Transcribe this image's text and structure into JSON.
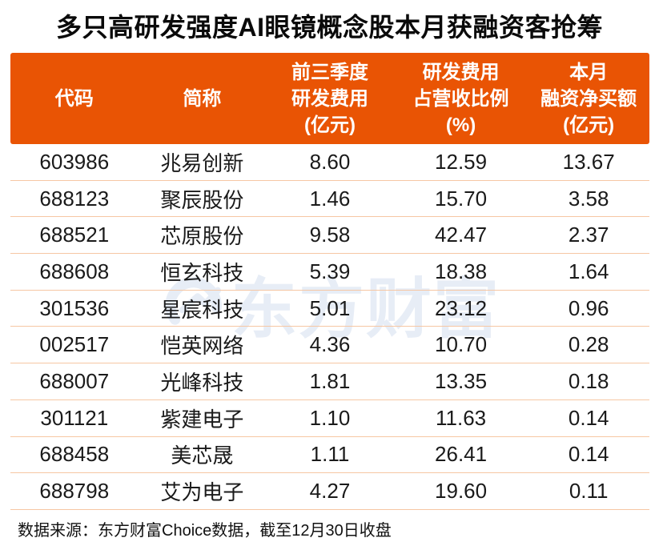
{
  "title": "多只高研发强度AI眼镜概念股本月获融资客抢筹",
  "colors": {
    "header_bg": "#E95404",
    "row_separator": "#F6C7A4",
    "title_text": "#0a0a0a",
    "header_text": "#ffffff",
    "cell_text": "#1a1a1a",
    "watermark": "#E7EDF6"
  },
  "watermark": {
    "text": "东方财富"
  },
  "footer": {
    "source_note": "数据来源：东方财富Choice数据，截至12月30日收盘"
  },
  "chart_data": {
    "type": "table",
    "title": "多只高研发强度AI眼镜概念股本月获融资客抢筹",
    "header_columns": [
      {
        "label": "代码",
        "lines": [
          "代码"
        ]
      },
      {
        "label": "简称",
        "lines": [
          "简称"
        ]
      },
      {
        "label": "前三季度研发费用(亿元)",
        "lines": [
          "前三季度",
          "研发费用",
          "(亿元)"
        ]
      },
      {
        "label": "研发费用占营收比例(%)",
        "lines": [
          "研发费用",
          "占营收比例",
          "(%)"
        ]
      },
      {
        "label": "本月融资净买额(亿元)",
        "lines": [
          "本月",
          "融资净买额",
          "(亿元)"
        ]
      }
    ],
    "rows": [
      [
        "603986",
        "兆易创新",
        "8.60",
        "12.59",
        "13.67"
      ],
      [
        "688123",
        "聚辰股份",
        "1.46",
        "15.70",
        "3.58"
      ],
      [
        "688521",
        "芯原股份",
        "9.58",
        "42.47",
        "2.37"
      ],
      [
        "688608",
        "恒玄科技",
        "5.39",
        "18.38",
        "1.64"
      ],
      [
        "301536",
        "星宸科技",
        "5.01",
        "23.12",
        "0.96"
      ],
      [
        "002517",
        "恺英网络",
        "4.36",
        "10.70",
        "0.28"
      ],
      [
        "688007",
        "光峰科技",
        "1.81",
        "13.35",
        "0.18"
      ],
      [
        "301121",
        "紫建电子",
        "1.10",
        "11.63",
        "0.14"
      ],
      [
        "688458",
        "美芯晟",
        "1.11",
        "26.41",
        "0.14"
      ],
      [
        "688798",
        "艾为电子",
        "4.27",
        "19.60",
        "0.11"
      ]
    ],
    "source": "数据来源：东方财富Choice数据，截至12月30日收盘"
  }
}
